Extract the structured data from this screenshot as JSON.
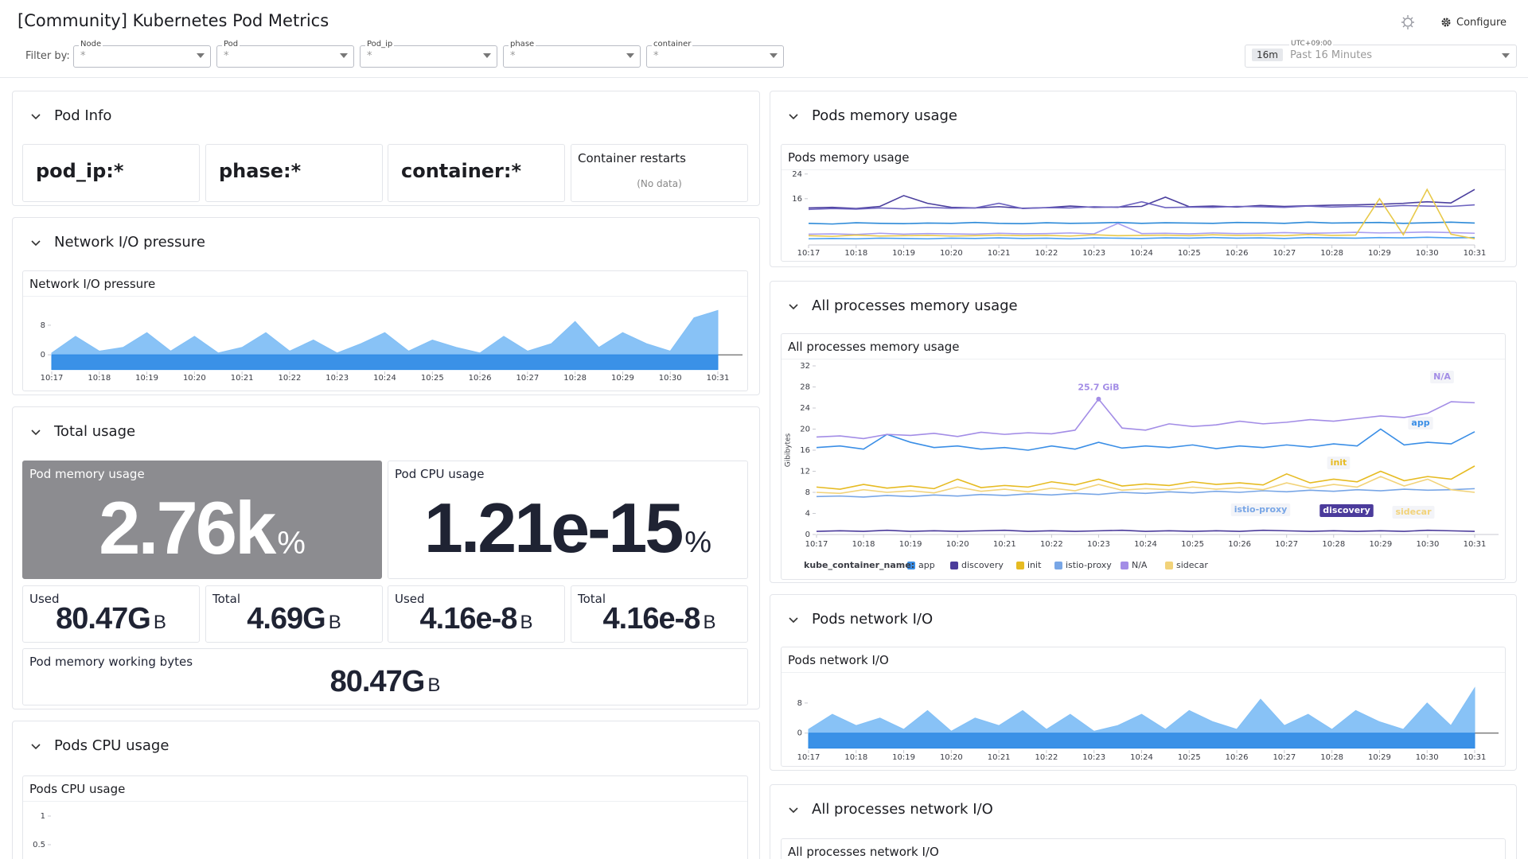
{
  "header": {
    "title": "[Community] Kubernetes Pod Metrics",
    "filter_label": "Filter by:",
    "filters": [
      {
        "name": "Node",
        "value": "*"
      },
      {
        "name": "Pod",
        "value": "*"
      },
      {
        "name": "Pod_ip",
        "value": "*"
      },
      {
        "name": "phase",
        "value": "*"
      },
      {
        "name": "container",
        "value": "*"
      }
    ],
    "timezone": "UTC+09:00",
    "time_badge": "16m",
    "time_range": "Past 16 Minutes",
    "configure": "Configure"
  },
  "sections": {
    "pod_info": {
      "title": "Pod Info",
      "tiles": [
        "pod_ip:*",
        "phase:*",
        "container:*"
      ],
      "restarts": {
        "title": "Container restarts",
        "value": "(No data)"
      }
    },
    "network_pressure": {
      "title": "Network I/O pressure"
    },
    "total_usage": {
      "title": "Total usage",
      "memory": {
        "title": "Pod memory usage",
        "value": "2.76k",
        "unit": "%"
      },
      "cpu": {
        "title": "Pod CPU usage",
        "value": "1.21e-15",
        "unit": "%"
      },
      "stats": [
        {
          "title": "Used",
          "value": "80.47G",
          "unit": "B"
        },
        {
          "title": "Total",
          "value": "4.69G",
          "unit": "B"
        },
        {
          "title": "Used",
          "value": "4.16e-8",
          "unit": "B"
        },
        {
          "title": "Total",
          "value": "4.16e-8",
          "unit": "B"
        }
      ],
      "working": {
        "title": "Pod memory working bytes",
        "value": "80.47G",
        "unit": "B"
      }
    },
    "pods_cpu": {
      "title": "Pods CPU usage"
    },
    "pods_memory": {
      "title": "Pods memory usage"
    },
    "all_memory": {
      "title": "All processes memory usage"
    },
    "pods_network": {
      "title": "Pods network I/O"
    },
    "all_network": {
      "title": "All processes network I/O"
    }
  },
  "chart_data": [
    {
      "type": "area",
      "title": "Network I/O pressure",
      "categories": [
        "10:17",
        null,
        "10:18",
        null,
        "10:19",
        null,
        "10:20",
        null,
        "10:21",
        null,
        "10:22",
        null,
        "10:23",
        null,
        "10:24",
        null,
        "10:25",
        null,
        "10:26",
        null,
        "10:27",
        null,
        "10:28",
        null,
        "10:29",
        null,
        "10:30",
        null,
        "10:31"
      ],
      "ylim": [
        -4.5,
        14
      ],
      "yticks": [
        0,
        8
      ],
      "series": [
        {
          "color": "#82bff5",
          "values": [
            0.5,
            5,
            1,
            2,
            6,
            1,
            5,
            0.5,
            2,
            6,
            1,
            4,
            0.5,
            3,
            6,
            1,
            4,
            2,
            0.5,
            5,
            1,
            3,
            9,
            2,
            6,
            3,
            1,
            10,
            12
          ]
        },
        {
          "color": "#2f8be6",
          "values": [
            -4,
            -4,
            -4,
            -4,
            -4,
            -4,
            -4,
            -4,
            -4,
            -4,
            -4,
            -4,
            -4,
            -4,
            -4,
            -4,
            -4,
            -4,
            -4,
            -4,
            -4,
            -4,
            -4,
            -4,
            -4,
            -4,
            -4,
            -4,
            -4
          ]
        }
      ]
    },
    {
      "type": "line",
      "title": "Pods CPU usage",
      "ylim": [
        0,
        1.2
      ],
      "yticks": [
        0.5,
        1
      ]
    },
    {
      "type": "line",
      "title": "Pods memory usage",
      "categories": [
        "10:17",
        null,
        "10:18",
        null,
        "10:19",
        null,
        "10:20",
        null,
        "10:21",
        null,
        "10:22",
        null,
        "10:23",
        null,
        "10:24",
        null,
        "10:25",
        null,
        "10:26",
        null,
        "10:27",
        null,
        "10:28",
        null,
        "10:29",
        null,
        "10:30",
        null,
        "10:31"
      ],
      "ylim": [
        1,
        26
      ],
      "yticks": [
        16,
        24
      ],
      "series": [
        {
          "color": "#4b3f9e",
          "values": [
            13,
            13.2,
            12.8,
            13.5,
            17,
            14.5,
            13.2,
            13,
            13.4,
            12.9,
            13.1,
            13.6,
            13.2,
            13.3,
            13.5,
            16.5,
            13.4,
            13.6,
            13.3,
            13.8,
            13.5,
            13.7,
            13.9,
            14,
            14.2,
            14.5,
            15,
            14.6,
            19
          ]
        },
        {
          "color": "#6e64c0",
          "values": [
            12.5,
            12.8,
            12.6,
            13,
            12.7,
            13.2,
            12.9,
            13,
            14.5,
            12.8,
            13.1,
            13,
            13.4,
            13.2,
            15,
            13.1,
            13.3,
            13.2,
            13.5,
            13.4,
            13.2,
            13.6,
            13.3,
            13.5,
            13.4,
            13.8,
            13.6,
            13.5,
            14
          ]
        },
        {
          "color": "#2d8ad8",
          "values": [
            8,
            7.8,
            8.2,
            8,
            7.9,
            8.1,
            8,
            8.3,
            8,
            7.9,
            8.2,
            8,
            8.1,
            8.3,
            8,
            8.2,
            8.1,
            8,
            8.3,
            8.2,
            8,
            8.4,
            8.1,
            8.2,
            8.3,
            8,
            8.2,
            8.4,
            8.1
          ]
        },
        {
          "color": "#a99ef0",
          "values": [
            4.5,
            4.6,
            4.4,
            4.8,
            4.5,
            4.7,
            4.6,
            4.5,
            4.8,
            4.6,
            4.7,
            4.9,
            4.6,
            8,
            4.7,
            4.8,
            4.6,
            4.9,
            4.7,
            4.8,
            5,
            4.8,
            4.9,
            5.1,
            4.9,
            5,
            5.2,
            5,
            4.8
          ]
        },
        {
          "color": "#4aa0f0",
          "values": [
            3,
            3.1,
            3,
            3.2,
            3.1,
            3,
            3.2,
            3.1,
            3.3,
            3.1,
            3.2,
            3,
            3.3,
            3.2,
            3.1,
            3.3,
            3.2,
            3.4,
            3.2,
            3.3,
            3.1,
            3.4,
            3.3,
            3.2,
            3.4,
            3.3,
            3.5,
            3.3,
            3.4
          ]
        },
        {
          "color": "#e8c94a",
          "values": [
            4,
            3.8,
            4.2,
            3.9,
            4,
            4.1,
            3.9,
            4,
            4.2,
            4,
            4.1,
            3.9,
            4.3,
            4,
            4.1,
            4.2,
            4,
            4.3,
            4.1,
            4.2,
            4,
            4.4,
            4.1,
            4.2,
            16,
            4.3,
            19,
            4.5,
            3
          ]
        }
      ]
    },
    {
      "type": "line",
      "title": "All processes memory usage",
      "ylabel": "Gibibytes",
      "legend_title": "kube_container_name:",
      "categories": [
        "10:17",
        null,
        "10:18",
        null,
        "10:19",
        null,
        "10:20",
        null,
        "10:21",
        null,
        "10:22",
        null,
        "10:23",
        null,
        "10:24",
        null,
        "10:25",
        null,
        "10:26",
        null,
        "10:27",
        null,
        "10:28",
        null,
        "10:29",
        null,
        "10:30",
        null,
        "10:31"
      ],
      "ylim": [
        0,
        32
      ],
      "yticks": [
        0,
        4,
        8,
        12,
        16,
        20,
        24,
        28,
        32
      ],
      "series": [
        {
          "name": "app",
          "color": "#3a8ee6",
          "values": [
            16.5,
            16.8,
            16.2,
            19,
            17.5,
            16.5,
            16.8,
            16.2,
            16.5,
            16,
            16.8,
            16.2,
            17.5,
            16.4,
            16.8,
            16.5,
            17,
            16.3,
            16.8,
            16.5,
            17,
            16.6,
            17.2,
            16.8,
            20,
            17,
            17.5,
            17.2,
            19.5
          ]
        },
        {
          "name": "discovery",
          "color": "#4b3b9b",
          "values": [
            0.6,
            0.7,
            0.6,
            0.8,
            0.6,
            0.7,
            0.6,
            0.7,
            0.8,
            0.6,
            0.7,
            0.6,
            0.7,
            0.8,
            0.6,
            0.7,
            0.6,
            0.7,
            0.6,
            0.8,
            0.7,
            0.6,
            0.7,
            0.6,
            0.7,
            0.6,
            0.8,
            0.7,
            0.6
          ]
        },
        {
          "name": "init",
          "color": "#e6bb22",
          "values": [
            9,
            8.6,
            9.5,
            8.8,
            9.2,
            8.7,
            10.5,
            8.9,
            9.3,
            9,
            10,
            9.4,
            10.5,
            9.2,
            9.6,
            9.3,
            10,
            9.5,
            9.8,
            9.4,
            11.5,
            9.8,
            10.5,
            10,
            12,
            10.2,
            11,
            10.5,
            13
          ]
        },
        {
          "name": "istio-proxy",
          "color": "#78a6e6",
          "values": [
            7.2,
            7.3,
            7.1,
            7.4,
            7.2,
            7.5,
            7.3,
            7.6,
            7.4,
            7.7,
            7.5,
            7.8,
            7.6,
            8,
            7.8,
            8.1,
            7.9,
            8.2,
            8,
            8.3,
            8.1,
            8.4,
            8.2,
            8.5,
            8.3,
            8.6,
            8.4,
            8.5,
            8.7
          ]
        },
        {
          "name": "N/A",
          "color": "#a38de6",
          "values": [
            18.5,
            18.7,
            18.2,
            19,
            18.8,
            19.2,
            18.6,
            19.4,
            19,
            19.3,
            19.1,
            19.8,
            25.7,
            20.2,
            19.8,
            21,
            20.5,
            20.8,
            21.5,
            21,
            21.3,
            21.8,
            21.5,
            22,
            22.5,
            22.2,
            23,
            25.2,
            25
          ],
          "value_labels": [
            null,
            null,
            null,
            null,
            null,
            null,
            null,
            null,
            null,
            null,
            null,
            null,
            "25.7 GiB",
            null,
            null,
            null,
            null,
            null,
            null,
            null,
            null,
            null,
            null,
            null,
            null,
            null,
            null,
            null,
            null
          ]
        },
        {
          "name": "sidecar",
          "color": "#f2d37a",
          "values": [
            8,
            7.8,
            8.5,
            8,
            8.3,
            7.9,
            9,
            8.2,
            8.6,
            8.1,
            8.8,
            8.3,
            9.5,
            8.4,
            8.7,
            8.5,
            9,
            8.6,
            8.9,
            8.5,
            9.8,
            8.8,
            9.5,
            9,
            11,
            9.2,
            10.5,
            8.5,
            8
          ]
        }
      ]
    },
    {
      "type": "area",
      "title": "Pods network I/O",
      "categories": [
        "10:17",
        null,
        "10:18",
        null,
        "10:19",
        null,
        "10:20",
        null,
        "10:21",
        null,
        "10:22",
        null,
        "10:23",
        null,
        "10:24",
        null,
        "10:25",
        null,
        "10:26",
        null,
        "10:27",
        null,
        "10:28",
        null,
        "10:29",
        null,
        "10:30",
        null,
        "10:31"
      ],
      "ylim": [
        -4.5,
        14
      ],
      "yticks": [
        0,
        8
      ],
      "series": [
        {
          "color": "#82bff5",
          "values": [
            1,
            5,
            2,
            4,
            1,
            6,
            0.5,
            4,
            2,
            6,
            1,
            5,
            0.5,
            2,
            5,
            1,
            6,
            3,
            1,
            9,
            2,
            5,
            1,
            6,
            3,
            1,
            8,
            2,
            12
          ]
        },
        {
          "color": "#2f8be6",
          "values": [
            -4,
            -4,
            -4,
            -4,
            -4,
            -4,
            -4,
            -4,
            -4,
            -4,
            -4,
            -4,
            -4,
            -4,
            -4,
            -4,
            -4,
            -4,
            -4,
            -4,
            -4,
            -4,
            -4,
            -4,
            -4,
            -4,
            -4,
            -4,
            -4
          ]
        }
      ]
    },
    {
      "type": "line",
      "title": "All processes network I/O"
    }
  ]
}
